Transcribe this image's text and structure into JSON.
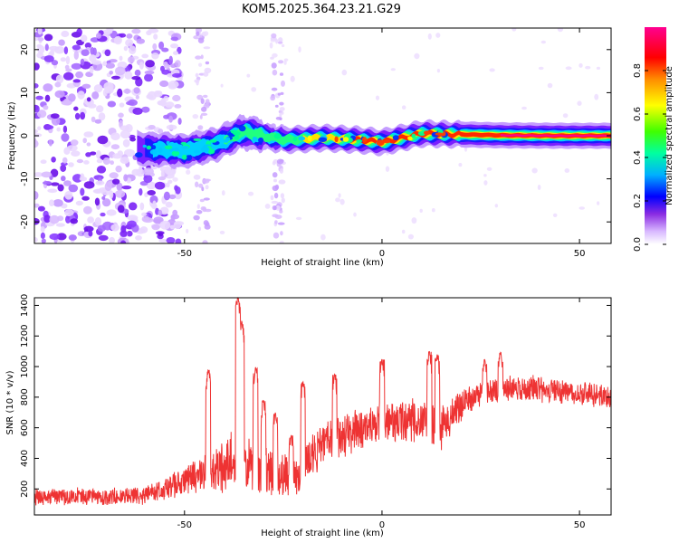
{
  "title": "KOM5.2025.364.23.21.G29",
  "colors": {
    "snr_line": "#ee3333",
    "frame": "#000000"
  },
  "chart_data": [
    {
      "type": "heatmap",
      "name": "spectrogram",
      "xlabel": "Height of straight line (km)",
      "ylabel": "Frequency (Hz)",
      "xlim": [
        -88,
        58
      ],
      "ylim": [
        -25,
        25
      ],
      "xticks": [
        -50,
        0,
        50
      ],
      "yticks": [
        -20,
        -10,
        0,
        10,
        20
      ],
      "colorbar": {
        "label": "Normalized spectral amplitude",
        "range": [
          0.0,
          1.0
        ],
        "ticks": [
          0.0,
          0.2,
          0.4,
          0.6,
          0.8
        ],
        "tick_labels": [
          "0.0",
          "0.2",
          "0.4",
          "0.6",
          "0.8"
        ],
        "colormap": [
          "#ffffff",
          "#c8a0ff",
          "#7a1fff",
          "#0000ff",
          "#00c8ff",
          "#00ff90",
          "#40ff00",
          "#ffff00",
          "#ff9000",
          "#ff0000",
          "#ff00a0"
        ]
      },
      "ridge": {
        "description_points": [
          [
            -62,
            -3
          ],
          [
            -50,
            -3.5
          ],
          [
            -42,
            -2
          ],
          [
            -35,
            1
          ],
          [
            -25,
            -1
          ],
          [
            -15,
            -0.5
          ],
          [
            -5,
            -1
          ],
          [
            0,
            -1.5
          ],
          [
            10,
            0.5
          ],
          [
            20,
            0.3
          ],
          [
            30,
            0.1
          ],
          [
            45,
            0
          ],
          [
            58,
            0
          ]
        ],
        "peak_amplitude_start_km": -8
      },
      "noise_region_km": [
        -88,
        -55
      ]
    },
    {
      "type": "line",
      "name": "snr",
      "xlabel": "Height of straight line (km)",
      "ylabel": "SNR (10 * v/v)",
      "xlim": [
        -88,
        58
      ],
      "ylim": [
        30,
        1450
      ],
      "xticks": [
        -50,
        0,
        50
      ],
      "yticks": [
        200,
        400,
        600,
        800,
        1000,
        1200,
        1400
      ],
      "series": [
        {
          "name": "SNR",
          "envelope_km": [
            -88,
            -70,
            -60,
            -55,
            -50,
            -45,
            -40,
            -37,
            -35,
            -30,
            -25,
            -22,
            -20,
            -15,
            -10,
            -5,
            0,
            5,
            10,
            15,
            20,
            25,
            30,
            35,
            40,
            45,
            50,
            55,
            58
          ],
          "envelope_mean": [
            150,
            150,
            160,
            200,
            250,
            300,
            350,
            420,
            380,
            300,
            300,
            250,
            350,
            500,
            550,
            600,
            650,
            650,
            640,
            600,
            750,
            820,
            860,
            860,
            850,
            840,
            830,
            810,
            800
          ],
          "envelope_spread": [
            80,
            80,
            90,
            120,
            150,
            200,
            250,
            350,
            280,
            250,
            250,
            200,
            220,
            200,
            200,
            200,
            220,
            220,
            200,
            200,
            150,
            120,
            120,
            120,
            120,
            120,
            120,
            120,
            120
          ]
        }
      ],
      "peaks": [
        [
          -36.5,
          1450
        ],
        [
          -35.5,
          1300
        ],
        [
          -44,
          980
        ],
        [
          -32,
          1000
        ],
        [
          -30,
          780
        ],
        [
          -27,
          700
        ],
        [
          -23,
          550
        ],
        [
          -20,
          900
        ],
        [
          -12,
          950
        ],
        [
          0,
          1050
        ],
        [
          12,
          1100
        ],
        [
          14,
          1080
        ],
        [
          26,
          1050
        ],
        [
          30,
          1100
        ]
      ]
    }
  ]
}
